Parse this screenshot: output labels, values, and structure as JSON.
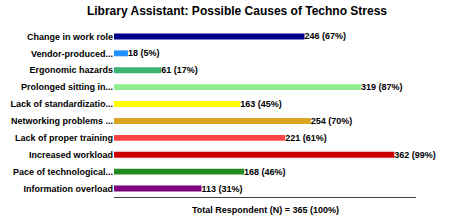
{
  "chart_data": {
    "type": "bar",
    "orientation": "horizontal",
    "title": "Library Assistant: Possible Causes of Techno Stress",
    "categories": [
      "Change in work role",
      "Vendor-produced...",
      "Ergonomic hazards",
      "Prolonged sitting in...",
      "Lack of standardizatio...",
      "Networking problems ...",
      "Lack of proper training",
      "Increased workload",
      "Pace of technological...",
      "Information overload"
    ],
    "values": [
      246,
      18,
      61,
      319,
      163,
      254,
      221,
      362,
      168,
      113
    ],
    "value_labels": [
      "246 (67%)",
      "18 (5%)",
      "61 (17%)",
      "319 (87%)",
      "163 (45%)",
      "254 (70%)",
      "221 (61%)",
      "362 (99%)",
      "168 (46%)",
      "113 (31%)"
    ],
    "data_labels": true,
    "colors": [
      "#00008B",
      "#1E90FF",
      "#3CB371",
      "#90EE90",
      "#FFFF00",
      "#DAA520",
      "#FF4444",
      "#CC0000",
      "#228B22",
      "#800080"
    ],
    "xlim": [
      0,
      390
    ],
    "tick_labels": "y",
    "grid": false,
    "annotations": [
      "Total Respondent (N) = 365 (100%)"
    ]
  }
}
